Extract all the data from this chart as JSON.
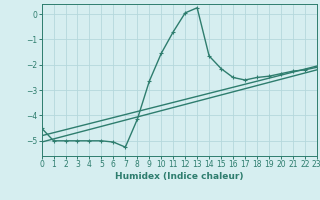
{
  "xlabel": "Humidex (Indice chaleur)",
  "ylabel": "",
  "background_color": "#d6eef0",
  "line_color": "#2e7d6e",
  "grid_color": "#b5d8dc",
  "xlim": [
    0,
    23
  ],
  "ylim": [
    -5.6,
    0.4
  ],
  "yticks": [
    0,
    -1,
    -2,
    -3,
    -4,
    -5
  ],
  "xticks": [
    0,
    1,
    2,
    3,
    4,
    5,
    6,
    7,
    8,
    9,
    10,
    11,
    12,
    13,
    14,
    15,
    16,
    17,
    18,
    19,
    20,
    21,
    22,
    23
  ],
  "series1_x": [
    0,
    1,
    2,
    3,
    4,
    5,
    6,
    7,
    8,
    9,
    10,
    11,
    12,
    13,
    14,
    15,
    16,
    17,
    18,
    19,
    20,
    21,
    22,
    23
  ],
  "series1_y": [
    -4.5,
    -5.0,
    -5.0,
    -5.0,
    -5.0,
    -5.0,
    -5.05,
    -5.25,
    -4.15,
    -2.65,
    -1.55,
    -0.7,
    0.05,
    0.25,
    -1.65,
    -2.15,
    -2.5,
    -2.6,
    -2.5,
    -2.45,
    -2.35,
    -2.25,
    -2.2,
    -2.1
  ],
  "series2_x": [
    0,
    23
  ],
  "series2_y": [
    -4.8,
    -2.05
  ],
  "series3_x": [
    0,
    23
  ],
  "series3_y": [
    -5.05,
    -2.2
  ],
  "marker_size": 3.0,
  "linewidth": 1.0
}
